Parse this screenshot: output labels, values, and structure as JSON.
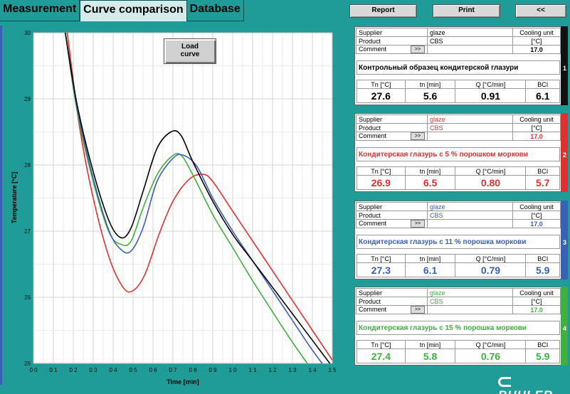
{
  "tabs": [
    {
      "label": "Measurement"
    },
    {
      "label": "Curve comparison"
    },
    {
      "label": "Database"
    }
  ],
  "top_buttons": {
    "report": "Report",
    "print": "Print",
    "back": "<<"
  },
  "load_button": {
    "line1": "Load",
    "line2": "curve"
  },
  "chart_data": {
    "type": "line",
    "xlabel": "Time [min]",
    "ylabel": "Temperature [°C]",
    "xlim": [
      0,
      15
    ],
    "ylim": [
      25,
      30
    ],
    "grid": true,
    "x_ticks": [
      "0 0",
      "0 1",
      "0 2",
      "0 3",
      "0 4",
      "0 5",
      "0 6",
      "0 7",
      "0 8",
      "0 9",
      "1 0",
      "1 1",
      "1 2",
      "1 3",
      "1 4",
      "1 5"
    ],
    "y_ticks": [
      "25",
      "26",
      "27",
      "28",
      "29",
      "30"
    ],
    "series": [
      {
        "color": "#000000",
        "x": [
          1.6,
          2.2,
          3,
          3.8,
          4.4,
          4.9,
          5.5,
          6.2,
          6.9,
          7.4,
          8,
          9,
          10,
          11,
          12,
          13,
          14,
          15
        ],
        "y": [
          30,
          28.9,
          27.9,
          27.15,
          26.9,
          27.05,
          27.6,
          28.25,
          28.5,
          28.45,
          28.05,
          27.45,
          26.95,
          26.55,
          26.15,
          25.75,
          25.35,
          24.95
        ]
      },
      {
        "color": "#e03030",
        "x": [
          1.7,
          2.3,
          3,
          3.8,
          4.5,
          5,
          5.6,
          6.3,
          7,
          7.8,
          8.5,
          9,
          10,
          11,
          12,
          13,
          14,
          15
        ],
        "y": [
          30,
          28.6,
          27.5,
          26.6,
          26.15,
          26.1,
          26.35,
          26.95,
          27.45,
          27.78,
          27.86,
          27.75,
          27.3,
          26.85,
          26.4,
          25.95,
          25.5,
          25.05
        ]
      },
      {
        "color": "#3a5fb4",
        "x": [
          1.6,
          2.2,
          3,
          3.8,
          4.4,
          4.9,
          5.5,
          6.2,
          7,
          7.5,
          8.2,
          9,
          10,
          11,
          12,
          13,
          14,
          15
        ],
        "y": [
          30,
          28.85,
          27.8,
          27.0,
          26.72,
          26.7,
          27.05,
          27.75,
          28.1,
          28.15,
          27.98,
          27.5,
          27.0,
          26.55,
          26.1,
          25.65,
          25.2,
          24.8
        ]
      },
      {
        "color": "#3fb03f",
        "x": [
          1.6,
          2.2,
          3,
          3.8,
          4.4,
          4.9,
          5.5,
          6.2,
          6.9,
          7.4,
          8,
          9,
          10,
          11,
          12,
          13,
          14,
          15
        ],
        "y": [
          30,
          28.8,
          27.75,
          26.98,
          26.8,
          26.85,
          27.35,
          27.85,
          28.12,
          28.15,
          27.85,
          27.25,
          26.75,
          26.25,
          25.78,
          25.32,
          24.9,
          24.55
        ]
      }
    ]
  },
  "cards": [
    {
      "supplier_label": "Supplier",
      "supplier": "glaze",
      "product_label": "Product",
      "product": "CBS",
      "comment_label": "Comment",
      "comment_btn": ">>",
      "cooling_label": "Cooling unit",
      "unit": "[°C]",
      "cooling": "17.0",
      "name": "Контрольный образец кондитерской глазури",
      "number": "1",
      "color": "#000000",
      "edge": "#111111",
      "h_tn": "Tn [°C]",
      "h_tnm": "tn [min]",
      "h_q": "Q [°C/min]",
      "h_bci": "BCI",
      "tn": "27.6",
      "tnmin": "5.6",
      "q": "0.91",
      "bci": "6.1"
    },
    {
      "supplier_label": "Supplier",
      "supplier": "glaze",
      "product_label": "Product",
      "product": "CBS",
      "comment_label": "Comment",
      "comment_btn": ">>",
      "cooling_label": "Cooling unit",
      "unit": "[°C]",
      "cooling": "17.0",
      "name": "Кондитерская глазурь с 5 % порошком моркови",
      "number": "2",
      "color": "#e03030",
      "edge": "#e03030",
      "h_tn": "Tn [°C]",
      "h_tnm": "tn [min]",
      "h_q": "Q [°C/min]",
      "h_bci": "BCI",
      "tn": "26.9",
      "tnmin": "6.5",
      "q": "0.80",
      "bci": "5.7"
    },
    {
      "supplier_label": "Supplier",
      "supplier": "glaze",
      "product_label": "Product",
      "product": "CBS",
      "comment_label": "Comment",
      "comment_btn": ">>",
      "cooling_label": "Cooling unit",
      "unit": "[°C]",
      "cooling": "17.0",
      "name": "Кондитерская глазурь с 11 % порошка моркови",
      "number": "3",
      "color": "#3a5fb4",
      "edge": "#3a5fb4",
      "h_tn": "Tn [°C]",
      "h_tnm": "tn [min]",
      "h_q": "Q [°C/min]",
      "h_bci": "BCI",
      "tn": "27.3",
      "tnmin": "6.1",
      "q": "0.79",
      "bci": "5.9"
    },
    {
      "supplier_label": "Supplier",
      "supplier": "glaze",
      "product_label": "Product",
      "product": "CBS",
      "comment_label": "Comment",
      "comment_btn": ">>",
      "cooling_label": "Cooling unit",
      "unit": "[°C]",
      "cooling": "17.0",
      "name": "Кондитерская глазурь с 15 % порошка моркови",
      "number": "4",
      "color": "#3fb03f",
      "edge": "#3fb03f",
      "h_tn": "Tn [°C]",
      "h_tnm": "tn [min]",
      "h_q": "Q [°C/min]",
      "h_bci": "BCI",
      "tn": "27.4",
      "tnmin": "5.8",
      "q": "0.76",
      "bci": "5.9"
    }
  ],
  "logo": {
    "text": "BUHLER"
  }
}
